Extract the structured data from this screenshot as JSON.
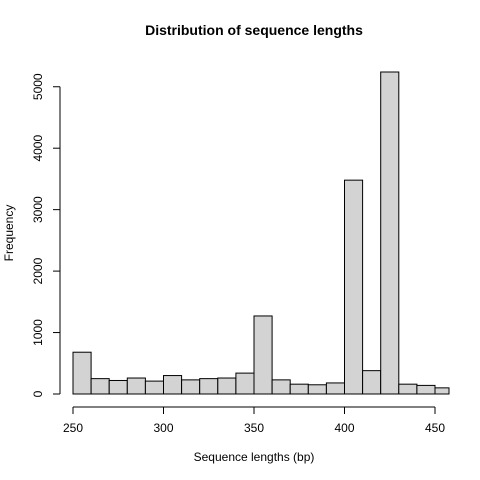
{
  "chart_data": {
    "type": "bar",
    "title": "Distribution of sequence lengths",
    "xlabel": "Sequence lengths (bp)",
    "ylabel": "Frequency",
    "bin_width": 10,
    "bins": [
      {
        "start": 250,
        "end": 260,
        "count": 680
      },
      {
        "start": 260,
        "end": 270,
        "count": 250
      },
      {
        "start": 270,
        "end": 280,
        "count": 220
      },
      {
        "start": 280,
        "end": 290,
        "count": 260
      },
      {
        "start": 290,
        "end": 300,
        "count": 210
      },
      {
        "start": 300,
        "end": 310,
        "count": 300
      },
      {
        "start": 310,
        "end": 320,
        "count": 230
      },
      {
        "start": 320,
        "end": 330,
        "count": 250
      },
      {
        "start": 330,
        "end": 340,
        "count": 260
      },
      {
        "start": 340,
        "end": 350,
        "count": 340
      },
      {
        "start": 350,
        "end": 360,
        "count": 1270
      },
      {
        "start": 360,
        "end": 370,
        "count": 230
      },
      {
        "start": 370,
        "end": 380,
        "count": 160
      },
      {
        "start": 380,
        "end": 390,
        "count": 150
      },
      {
        "start": 390,
        "end": 400,
        "count": 180
      },
      {
        "start": 400,
        "end": 410,
        "count": 3480
      },
      {
        "start": 410,
        "end": 420,
        "count": 380
      },
      {
        "start": 420,
        "end": 430,
        "count": 5240
      },
      {
        "start": 430,
        "end": 440,
        "count": 160
      },
      {
        "start": 440,
        "end": 450,
        "count": 140
      },
      {
        "start": 450,
        "end": 460,
        "count": 100
      }
    ],
    "x_ticks": [
      250,
      300,
      350,
      400,
      450
    ],
    "y_ticks": [
      0,
      1000,
      2000,
      3000,
      4000,
      5000
    ],
    "xlim": [
      250,
      450
    ],
    "ylim": [
      0,
      5240
    ],
    "bar_fill": "#d3d3d3",
    "bar_stroke": "#000000",
    "grid": false,
    "legend": "none"
  }
}
